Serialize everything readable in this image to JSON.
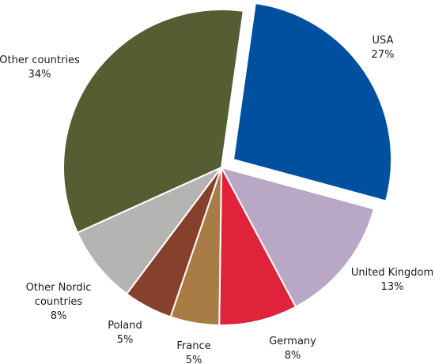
{
  "chart_data": {
    "type": "pie",
    "title": "",
    "start_angle_deg": 8,
    "exploded": [
      "USA"
    ],
    "slices": [
      {
        "name": "USA",
        "label_lines": [
          "USA"
        ],
        "value": 27,
        "value_label": "27%",
        "color": "#0050a0"
      },
      {
        "name": "United Kingdom",
        "label_lines": [
          "United Kingdom"
        ],
        "value": 13,
        "value_label": "13%",
        "color": "#b8a8c6"
      },
      {
        "name": "Germany",
        "label_lines": [
          "Germany"
        ],
        "value": 8,
        "value_label": "8%",
        "color": "#e0223a"
      },
      {
        "name": "France",
        "label_lines": [
          "France"
        ],
        "value": 5,
        "value_label": "5%",
        "color": "#a87c44"
      },
      {
        "name": "Poland",
        "label_lines": [
          "Poland"
        ],
        "value": 5,
        "value_label": "5%",
        "color": "#86402c"
      },
      {
        "name": "Other Nordic countries",
        "label_lines": [
          "Other Nordic",
          "countries"
        ],
        "value": 8,
        "value_label": "8%",
        "color": "#b4b4b2"
      },
      {
        "name": "Other countries",
        "label_lines": [
          "Other countries"
        ],
        "value": 34,
        "value_label": "34%",
        "color": "#545e32"
      }
    ]
  }
}
